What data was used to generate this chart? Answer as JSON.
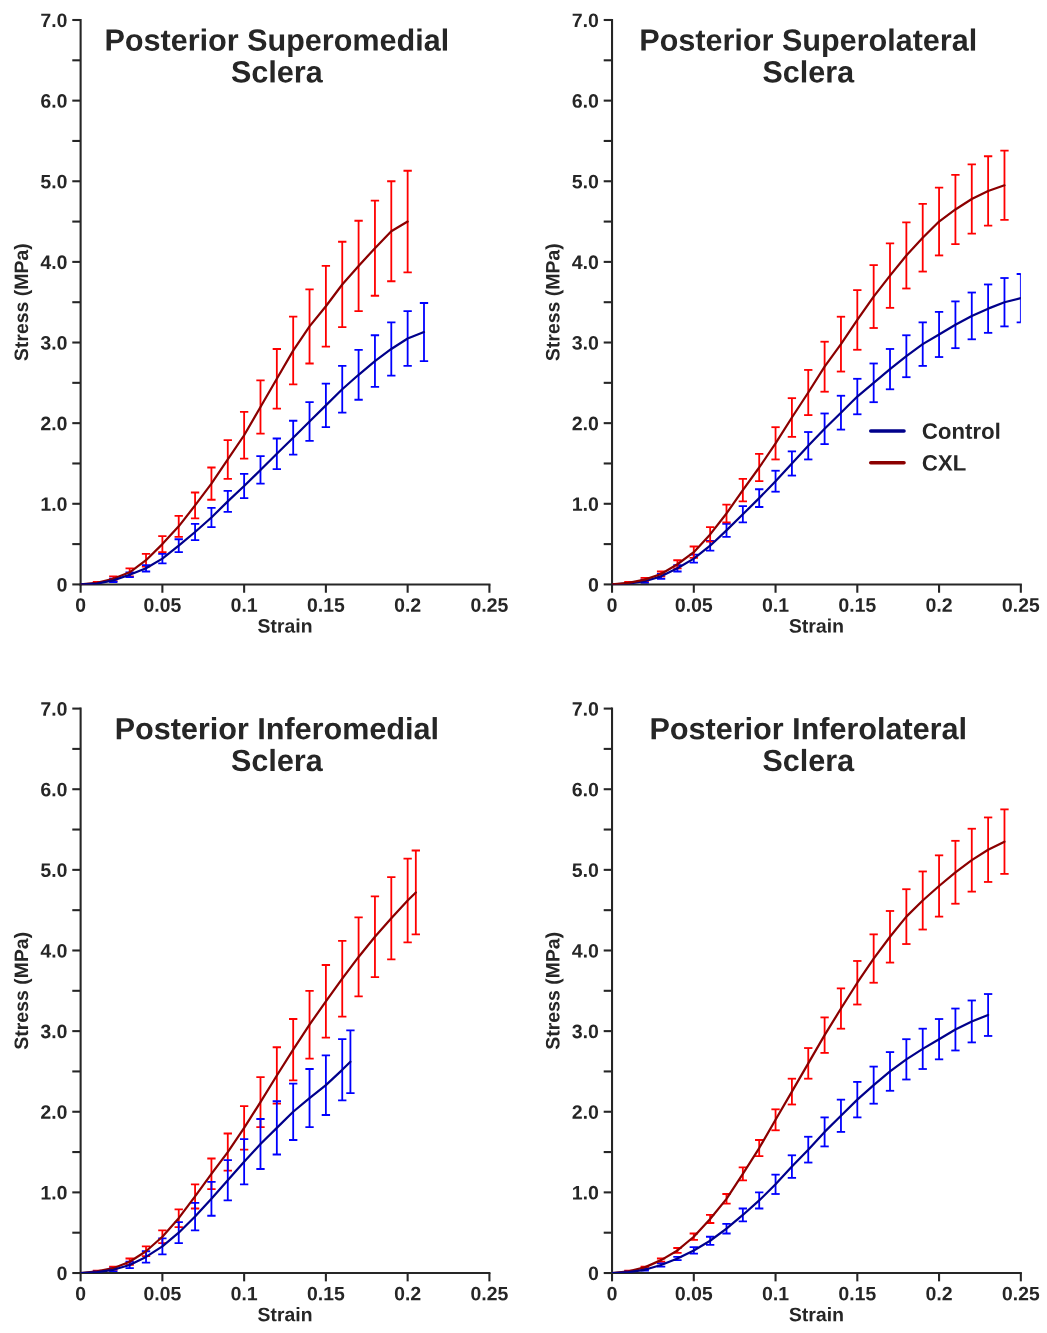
{
  "chart_data": [
    {
      "type": "line",
      "title": "Posterior Superomedial\nSclera",
      "xlabel": "Strain",
      "ylabel": "Stress (MPa)",
      "xlim": [
        0,
        0.25
      ],
      "ylim": [
        0,
        7
      ],
      "xticks": [
        0,
        0.05,
        0.1,
        0.15,
        0.2,
        0.25
      ],
      "yticks": [
        {
          "value": 0,
          "label": "0"
        },
        {
          "value": 0.5,
          "label": null
        },
        {
          "value": 1,
          "label": "1.0"
        },
        {
          "value": 1.5,
          "label": null
        },
        {
          "value": 2,
          "label": "2.0"
        },
        {
          "value": 2.5,
          "label": null
        },
        {
          "value": 3,
          "label": "3.0"
        },
        {
          "value": 3.5,
          "label": null
        },
        {
          "value": 4,
          "label": "4.0"
        },
        {
          "value": 4.5,
          "label": null
        },
        {
          "value": 5,
          "label": "5.0"
        },
        {
          "value": 5.5,
          "label": null
        },
        {
          "value": 6,
          "label": "6.0"
        },
        {
          "value": 6.5,
          "label": null
        },
        {
          "value": 7,
          "label": "7.0"
        }
      ],
      "grid": false,
      "legend": false,
      "marker": "none",
      "line_style": "solid",
      "series": [
        {
          "color": "#8b0000",
          "x": [
            0,
            0.01,
            0.02,
            0.03,
            0.04,
            0.05,
            0.06,
            0.07,
            0.08,
            0.09,
            0.1,
            0.11,
            0.12,
            0.13,
            0.14,
            0.15,
            0.16,
            0.17,
            0.18,
            0.19,
            0.2
          ],
          "values": [
            0,
            0.02,
            0.07,
            0.15,
            0.3,
            0.5,
            0.72,
            0.98,
            1.25,
            1.55,
            1.85,
            2.2,
            2.55,
            2.9,
            3.2,
            3.45,
            3.72,
            3.95,
            4.17,
            4.38,
            4.5
          ],
          "errors": [
            null,
            0.01,
            0.03,
            0.05,
            0.08,
            0.1,
            0.13,
            0.16,
            0.2,
            0.24,
            0.29,
            0.33,
            0.37,
            0.42,
            0.46,
            0.5,
            0.53,
            0.56,
            0.59,
            0.62,
            0.63
          ]
        },
        {
          "color": "#00008b",
          "x": [
            0,
            0.01,
            0.02,
            0.03,
            0.04,
            0.05,
            0.06,
            0.07,
            0.08,
            0.09,
            0.1,
            0.11,
            0.12,
            0.13,
            0.14,
            0.15,
            0.16,
            0.17,
            0.18,
            0.19,
            0.2,
            0.21
          ],
          "values": [
            0,
            0.01,
            0.05,
            0.12,
            0.2,
            0.32,
            0.48,
            0.65,
            0.83,
            1.03,
            1.22,
            1.42,
            1.62,
            1.82,
            2.02,
            2.22,
            2.42,
            2.6,
            2.77,
            2.92,
            3.05,
            3.13
          ],
          "errors": [
            null,
            0.01,
            0.02,
            0.03,
            0.04,
            0.06,
            0.08,
            0.1,
            0.12,
            0.13,
            0.15,
            0.17,
            0.19,
            0.21,
            0.24,
            0.27,
            0.29,
            0.31,
            0.32,
            0.33,
            0.34,
            0.36
          ]
        }
      ]
    },
    {
      "type": "line",
      "title": "Posterior Superolateral\nSclera",
      "xlabel": "Strain",
      "ylabel": "Stress (MPa)",
      "xlim": [
        0,
        0.25
      ],
      "ylim": [
        0,
        7
      ],
      "xticks": [
        0,
        0.05,
        0.1,
        0.15,
        0.2,
        0.25
      ],
      "yticks": [
        {
          "value": 0,
          "label": "0"
        },
        {
          "value": 0.5,
          "label": null
        },
        {
          "value": 1,
          "label": "1.0"
        },
        {
          "value": 1.5,
          "label": null
        },
        {
          "value": 2,
          "label": "2.0"
        },
        {
          "value": 2.5,
          "label": null
        },
        {
          "value": 3,
          "label": "3.0"
        },
        {
          "value": 3.5,
          "label": null
        },
        {
          "value": 4,
          "label": "4.0"
        },
        {
          "value": 4.5,
          "label": null
        },
        {
          "value": 5,
          "label": "5.0"
        },
        {
          "value": 5.5,
          "label": null
        },
        {
          "value": 6,
          "label": "6.0"
        },
        {
          "value": 6.5,
          "label": null
        },
        {
          "value": 7,
          "label": "7.0"
        }
      ],
      "grid": false,
      "legend": "right",
      "marker": "none",
      "line_style": "solid",
      "series": [
        {
          "name": "Control",
          "color": "#00008b",
          "x": [
            0,
            0.01,
            0.02,
            0.03,
            0.04,
            0.05,
            0.06,
            0.07,
            0.08,
            0.09,
            0.1,
            0.11,
            0.12,
            0.13,
            0.14,
            0.15,
            0.16,
            0.17,
            0.18,
            0.19,
            0.2,
            0.21,
            0.22,
            0.23,
            0.24,
            0.25
          ],
          "values": [
            0,
            0.01,
            0.04,
            0.1,
            0.2,
            0.32,
            0.48,
            0.67,
            0.87,
            1.07,
            1.28,
            1.5,
            1.72,
            1.93,
            2.13,
            2.33,
            2.5,
            2.67,
            2.83,
            2.98,
            3.1,
            3.22,
            3.33,
            3.42,
            3.5,
            3.55
          ],
          "errors": [
            null,
            0.01,
            0.02,
            0.03,
            0.04,
            0.05,
            0.06,
            0.08,
            0.1,
            0.11,
            0.13,
            0.15,
            0.17,
            0.19,
            0.21,
            0.22,
            0.24,
            0.25,
            0.26,
            0.27,
            0.28,
            0.29,
            0.29,
            0.3,
            0.3,
            0.3
          ]
        },
        {
          "name": "CXL",
          "color": "#8b0000",
          "x": [
            0,
            0.01,
            0.02,
            0.03,
            0.04,
            0.05,
            0.06,
            0.07,
            0.08,
            0.09,
            0.1,
            0.11,
            0.12,
            0.13,
            0.14,
            0.15,
            0.16,
            0.17,
            0.18,
            0.19,
            0.2,
            0.21,
            0.22,
            0.23,
            0.24
          ],
          "values": [
            0,
            0.02,
            0.06,
            0.13,
            0.25,
            0.4,
            0.62,
            0.88,
            1.17,
            1.45,
            1.75,
            2.07,
            2.38,
            2.7,
            2.98,
            3.28,
            3.57,
            3.83,
            4.08,
            4.3,
            4.5,
            4.65,
            4.78,
            4.88,
            4.95
          ],
          "errors": [
            null,
            0.01,
            0.02,
            0.03,
            0.05,
            0.07,
            0.09,
            0.11,
            0.14,
            0.17,
            0.2,
            0.24,
            0.28,
            0.31,
            0.34,
            0.37,
            0.39,
            0.4,
            0.41,
            0.42,
            0.42,
            0.43,
            0.43,
            0.43,
            0.43
          ]
        }
      ]
    },
    {
      "type": "line",
      "title": "Posterior Inferomedial\nSclera",
      "xlabel": "Strain",
      "ylabel": "Stress (MPa)",
      "xlim": [
        0,
        0.25
      ],
      "ylim": [
        0,
        7
      ],
      "xticks": [
        0,
        0.05,
        0.1,
        0.15,
        0.2,
        0.25
      ],
      "yticks": [
        {
          "value": 0,
          "label": "0"
        },
        {
          "value": 0.5,
          "label": null
        },
        {
          "value": 1,
          "label": "1.0"
        },
        {
          "value": 1.5,
          "label": null
        },
        {
          "value": 2,
          "label": "2.0"
        },
        {
          "value": 2.5,
          "label": null
        },
        {
          "value": 3,
          "label": "3.0"
        },
        {
          "value": 3.5,
          "label": null
        },
        {
          "value": 4,
          "label": "4.0"
        },
        {
          "value": 4.5,
          "label": null
        },
        {
          "value": 5,
          "label": "5.0"
        },
        {
          "value": 5.5,
          "label": null
        },
        {
          "value": 6,
          "label": "6.0"
        },
        {
          "value": 6.5,
          "label": null
        },
        {
          "value": 7,
          "label": "7.0"
        }
      ],
      "grid": false,
      "legend": false,
      "marker": "none",
      "line_style": "solid",
      "series": [
        {
          "color": "#8b0000",
          "x": [
            0,
            0.01,
            0.02,
            0.03,
            0.04,
            0.05,
            0.06,
            0.07,
            0.08,
            0.09,
            0.1,
            0.11,
            0.12,
            0.13,
            0.14,
            0.15,
            0.16,
            0.17,
            0.18,
            0.19,
            0.2,
            0.205
          ],
          "values": [
            0,
            0.02,
            0.06,
            0.14,
            0.27,
            0.45,
            0.68,
            0.95,
            1.23,
            1.5,
            1.8,
            2.12,
            2.45,
            2.77,
            3.08,
            3.37,
            3.65,
            3.92,
            4.17,
            4.4,
            4.62,
            4.72
          ],
          "errors": [
            null,
            0.01,
            0.02,
            0.04,
            0.06,
            0.08,
            0.11,
            0.15,
            0.19,
            0.23,
            0.27,
            0.31,
            0.35,
            0.38,
            0.42,
            0.45,
            0.47,
            0.49,
            0.5,
            0.51,
            0.52,
            0.52
          ]
        },
        {
          "color": "#00008b",
          "x": [
            0,
            0.01,
            0.02,
            0.03,
            0.04,
            0.05,
            0.06,
            0.07,
            0.08,
            0.09,
            0.1,
            0.11,
            0.12,
            0.13,
            0.14,
            0.15,
            0.16,
            0.165
          ],
          "values": [
            0,
            0.01,
            0.04,
            0.1,
            0.2,
            0.33,
            0.5,
            0.7,
            0.92,
            1.15,
            1.38,
            1.6,
            1.8,
            2.0,
            2.17,
            2.33,
            2.52,
            2.62
          ],
          "errors": [
            null,
            0.01,
            0.02,
            0.04,
            0.07,
            0.1,
            0.13,
            0.17,
            0.21,
            0.25,
            0.28,
            0.31,
            0.33,
            0.35,
            0.36,
            0.37,
            0.38,
            0.39
          ]
        }
      ]
    },
    {
      "type": "line",
      "title": "Posterior Inferolateral\nSclera",
      "xlabel": "Strain",
      "ylabel": "Stress (MPa)",
      "xlim": [
        0,
        0.25
      ],
      "ylim": [
        0,
        7
      ],
      "xticks": [
        0,
        0.05,
        0.1,
        0.15,
        0.2,
        0.25
      ],
      "yticks": [
        {
          "value": 0,
          "label": "0"
        },
        {
          "value": 0.5,
          "label": null
        },
        {
          "value": 1,
          "label": "1.0"
        },
        {
          "value": 1.5,
          "label": null
        },
        {
          "value": 2,
          "label": "2.0"
        },
        {
          "value": 2.5,
          "label": null
        },
        {
          "value": 3,
          "label": "3.0"
        },
        {
          "value": 3.5,
          "label": null
        },
        {
          "value": 4,
          "label": "4.0"
        },
        {
          "value": 4.5,
          "label": null
        },
        {
          "value": 5,
          "label": "5.0"
        },
        {
          "value": 5.5,
          "label": null
        },
        {
          "value": 6,
          "label": "6.0"
        },
        {
          "value": 6.5,
          "label": null
        },
        {
          "value": 7,
          "label": "7.0"
        }
      ],
      "grid": false,
      "legend": false,
      "marker": "none",
      "line_style": "solid",
      "series": [
        {
          "color": "#8b0000",
          "x": [
            0,
            0.01,
            0.02,
            0.03,
            0.04,
            0.05,
            0.06,
            0.07,
            0.08,
            0.09,
            0.1,
            0.11,
            0.12,
            0.13,
            0.14,
            0.15,
            0.16,
            0.17,
            0.18,
            0.19,
            0.2,
            0.21,
            0.22,
            0.23,
            0.24
          ],
          "values": [
            0,
            0.02,
            0.07,
            0.16,
            0.28,
            0.45,
            0.67,
            0.92,
            1.23,
            1.55,
            1.9,
            2.25,
            2.6,
            2.95,
            3.28,
            3.6,
            3.9,
            4.17,
            4.42,
            4.62,
            4.8,
            4.97,
            5.12,
            5.25,
            5.35
          ],
          "errors": [
            null,
            0.01,
            0.01,
            0.02,
            0.03,
            0.04,
            0.05,
            0.06,
            0.08,
            0.1,
            0.13,
            0.16,
            0.19,
            0.22,
            0.25,
            0.27,
            0.3,
            0.32,
            0.34,
            0.36,
            0.38,
            0.39,
            0.39,
            0.4,
            0.4
          ]
        },
        {
          "color": "#00008b",
          "x": [
            0,
            0.01,
            0.02,
            0.03,
            0.04,
            0.05,
            0.06,
            0.07,
            0.08,
            0.09,
            0.1,
            0.11,
            0.12,
            0.13,
            0.14,
            0.15,
            0.16,
            0.17,
            0.18,
            0.19,
            0.2,
            0.21,
            0.22,
            0.23
          ],
          "values": [
            0,
            0.01,
            0.04,
            0.1,
            0.18,
            0.28,
            0.4,
            0.55,
            0.72,
            0.9,
            1.1,
            1.32,
            1.53,
            1.75,
            1.95,
            2.15,
            2.33,
            2.5,
            2.65,
            2.78,
            2.9,
            3.02,
            3.12,
            3.2
          ],
          "errors": [
            null,
            0.01,
            0.01,
            0.02,
            0.02,
            0.04,
            0.05,
            0.06,
            0.08,
            0.1,
            0.12,
            0.14,
            0.16,
            0.18,
            0.2,
            0.22,
            0.23,
            0.24,
            0.25,
            0.25,
            0.25,
            0.26,
            0.26,
            0.26
          ]
        }
      ]
    }
  ]
}
